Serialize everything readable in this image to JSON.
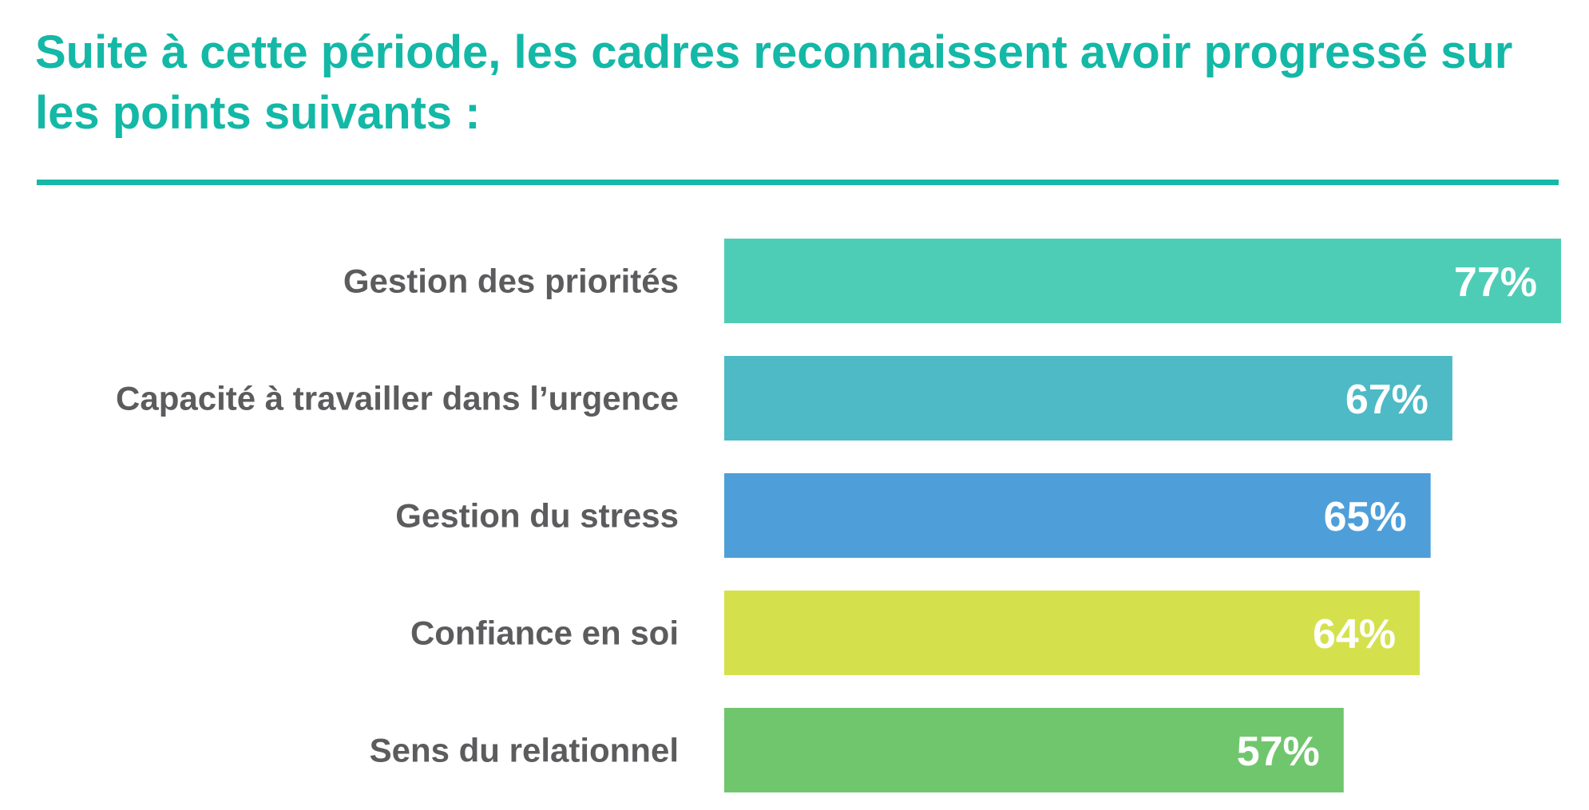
{
  "chart_data": {
    "type": "bar",
    "orientation": "horizontal",
    "title": "Suite à cette période, les cadres reconnaissent avoir progressé sur les points suivants :",
    "categories": [
      "Gestion des priorités",
      "Capacité à travailler dans l’urgence",
      "Gestion du stress",
      "Confiance en soi",
      "Sens du relationnel"
    ],
    "values": [
      77,
      67,
      65,
      64,
      57
    ],
    "value_labels": [
      "77%",
      "67%",
      "65%",
      "64%",
      "57%"
    ],
    "unit": "%",
    "xlim": [
      0,
      77
    ],
    "grid": false,
    "legend": "none",
    "colors": [
      "#4ecdb6",
      "#4dbac6",
      "#4e9fd9",
      "#d4e14c",
      "#70c66d"
    ],
    "title_color": "#14b8a6",
    "label_color": "#5c5c5e",
    "value_label_color": "#ffffff"
  }
}
